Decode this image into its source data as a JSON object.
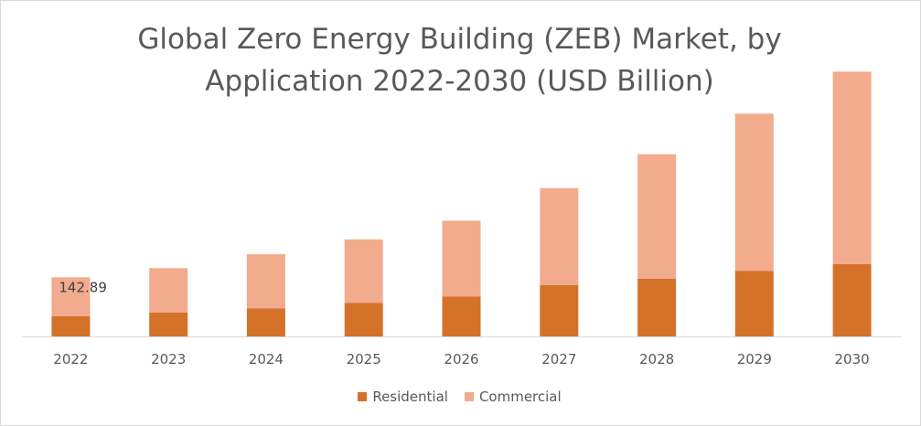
{
  "chart_data": {
    "type": "bar",
    "stacked": true,
    "title": "Global Zero Energy Building (ZEB) Market,  by\nApplication 2022-2030 (USD Billion)",
    "categories": [
      "2022",
      "2023",
      "2024",
      "2025",
      "2026",
      "2027",
      "2028",
      "2029",
      "2030"
    ],
    "series": [
      {
        "name": "Residential",
        "color": "#d4722a",
        "values": [
          48.6,
          57.4,
          67.3,
          80.5,
          96.0,
          123.6,
          139.1,
          157.9,
          174.5
        ]
      },
      {
        "name": "Commercial",
        "color": "#f2ab8d",
        "values": [
          94.29,
          107.6,
          131.2,
          153.7,
          183.4,
          234.4,
          301.0,
          380.2,
          464.9
        ]
      }
    ],
    "data_labels": [
      {
        "category": "2022",
        "text": "142.89"
      }
    ],
    "ylim": [
      0,
      680
    ],
    "grid": false,
    "legend": "bottom",
    "axis_color": "#d9d9d9"
  }
}
